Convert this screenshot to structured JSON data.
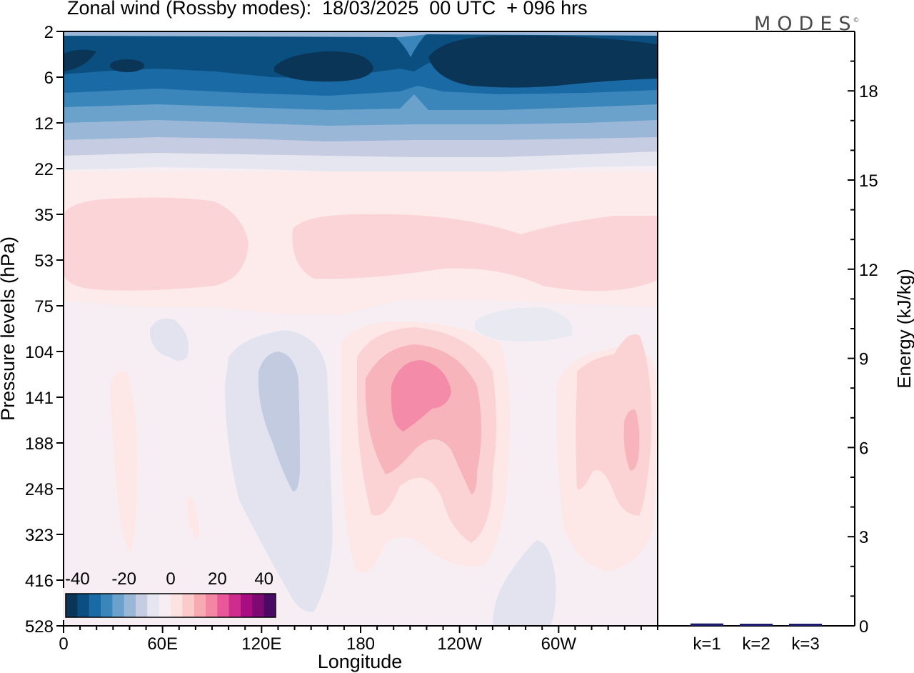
{
  "title": "Zonal wind (Rossby modes):  18/03/2025  00 UTC  + 096 hrs",
  "logo": "MODES",
  "logo_mark": "©",
  "chart_data": [
    {
      "type": "heatmap",
      "variable": "Zonal wind (Rossby modes)",
      "xlabel": "Longitude",
      "ylabel": "Pressure levels (hPa)",
      "x_ticks": [
        "0",
        "60E",
        "120E",
        "180",
        "120W",
        "60W"
      ],
      "x_tick_degrees": [
        0,
        60,
        120,
        180,
        240,
        300
      ],
      "x_range_degrees": [
        0,
        360
      ],
      "y_ticks": [
        "2",
        "6",
        "12",
        "22",
        "35",
        "53",
        "75",
        "104",
        "141",
        "188",
        "248",
        "323",
        "416",
        "528"
      ],
      "y_axis": "pressure, top = 2 hPa, bottom = 528 hPa",
      "colorbar": {
        "ticks": [
          "-40",
          "-20",
          "0",
          "20",
          "40"
        ],
        "min": -45,
        "max": 45,
        "step": 5,
        "colors": [
          "#0a3556",
          "#0b4f80",
          "#1a6aa6",
          "#3a86bb",
          "#6aa2cc",
          "#9bb7d8",
          "#c6cde3",
          "#e6e6f0",
          "#f6eef3",
          "#fde2e2",
          "#fbcbcc",
          "#f8aab3",
          "#f386a3",
          "#e8579a",
          "#cf2c8f",
          "#a80e82",
          "#7c0a72",
          "#4a0a64"
        ]
      },
      "features": [
        {
          "level_hpa": 4,
          "lon_range_deg": [
            0,
            360
          ],
          "value": -45,
          "note": "strong easterly band near top"
        },
        {
          "level_hpa": 10,
          "lon_range_deg": [
            0,
            360
          ],
          "value": -25
        },
        {
          "level_hpa": 18,
          "lon_range_deg": [
            0,
            360
          ],
          "value": -8
        },
        {
          "level_hpa": 50,
          "lon_range_deg": [
            0,
            115
          ],
          "value": 5
        },
        {
          "level_hpa": 50,
          "lon_range_deg": [
            140,
            360
          ],
          "value": 5
        },
        {
          "level_hpa": 141,
          "lon_range_deg": [
            200,
            235
          ],
          "value": 20,
          "note": "positive maximum"
        },
        {
          "level_hpa": 160,
          "lon_range_deg": [
            115,
            150
          ],
          "value": -7,
          "note": "negative minimum"
        }
      ]
    },
    {
      "type": "bar",
      "categories": [
        "k=1",
        "k=2",
        "k=3"
      ],
      "values": [
        0.08,
        0.05,
        0.05
      ],
      "ylabel": "Energy (kJ/kg)",
      "y_ticks": [
        "0",
        "3",
        "6",
        "9",
        "12",
        "15",
        "18"
      ],
      "ylim": [
        0,
        20
      ],
      "bar_color": "#1b1b6e"
    }
  ]
}
